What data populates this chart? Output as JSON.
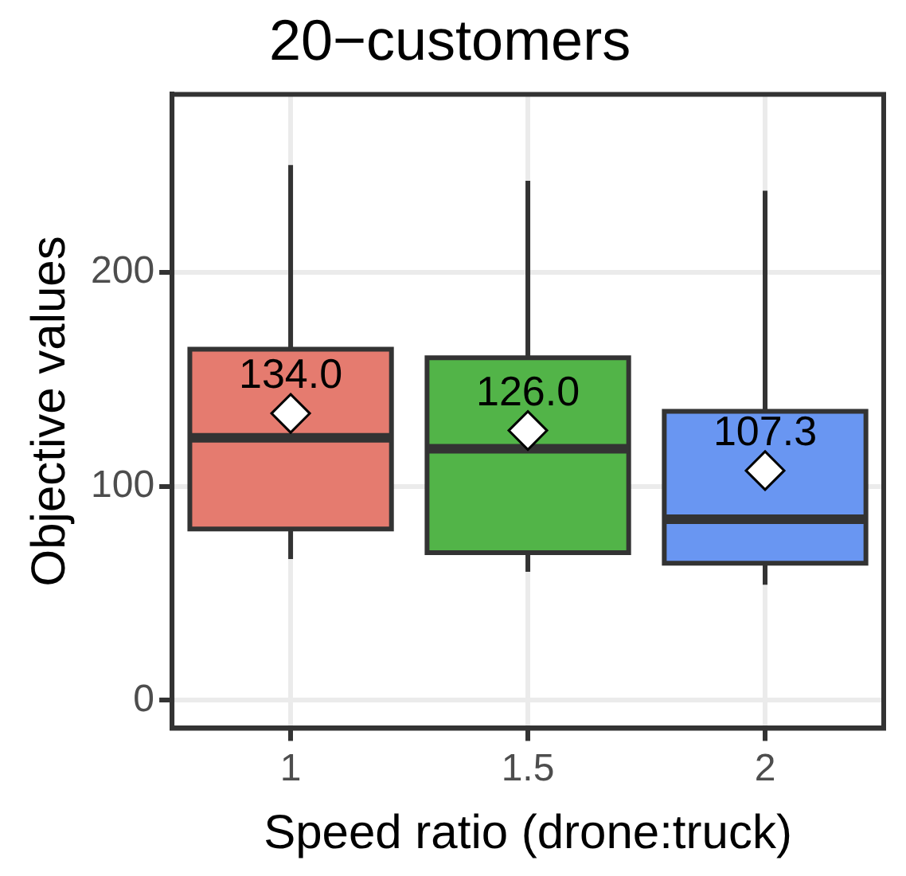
{
  "chart_data": {
    "type": "box",
    "title": "20−customers",
    "xlabel": "Speed ratio (drone:truck)",
    "ylabel": "Objective values",
    "categories": [
      "1",
      "1.5",
      "2"
    ],
    "colors": [
      "#e57b6f",
      "#52b448",
      "#6996f2"
    ],
    "boxes": [
      {
        "low": 66,
        "q1": 80,
        "median": 122.6,
        "q3": 164,
        "high": 250,
        "mean": 134.0
      },
      {
        "low": 60,
        "q1": 69,
        "median": 117.5,
        "q3": 160,
        "high": 242.6,
        "mean": 126.0
      },
      {
        "low": 54,
        "q1": 64,
        "median": 84.6,
        "q3": 135,
        "high": 238,
        "mean": 107.3
      }
    ],
    "value_labels": [
      "134.0",
      "126.0",
      "107.3"
    ],
    "ylim": [
      -13,
      283
    ],
    "yticks": [
      0,
      100,
      200
    ],
    "grid": true,
    "legend": false
  }
}
